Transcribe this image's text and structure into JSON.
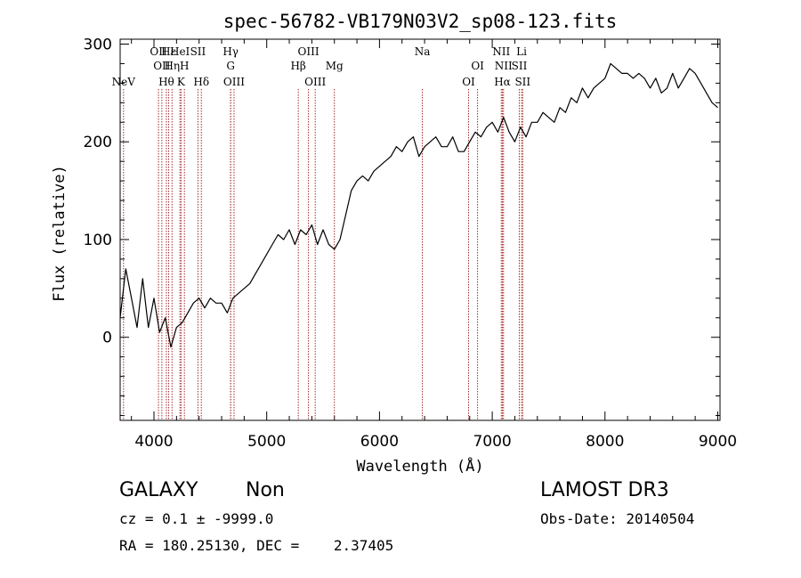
{
  "chart_data": {
    "type": "line",
    "title": "spec-56782-VB179N03V2_sp08-123.fits",
    "xlabel": "Wavelength (Å)",
    "ylabel": "Flux (relative)",
    "xlim": [
      3700,
      9020
    ],
    "ylim": [
      -85,
      305
    ],
    "xticks": [
      4000,
      5000,
      6000,
      7000,
      8000,
      9000
    ],
    "yticks": [
      0,
      100,
      200,
      300
    ],
    "grid": false,
    "series_color": "#000000",
    "line_marker_color": "#a52a2a",
    "series": [
      {
        "x": [
          3700,
          3750,
          3800,
          3850,
          3900,
          3950,
          4000,
          4050,
          4100,
          4150,
          4200,
          4250,
          4300,
          4350,
          4400,
          4450,
          4500,
          4550,
          4600,
          4650,
          4700,
          4750,
          4800,
          4850,
          4900,
          4950,
          5000,
          5050,
          5100,
          5150,
          5200,
          5250,
          5300,
          5350,
          5400,
          5450,
          5500,
          5550,
          5600,
          5650,
          5700,
          5750,
          5800,
          5850,
          5900,
          5950,
          6000,
          6050,
          6100,
          6150,
          6200,
          6250,
          6300,
          6350,
          6400,
          6450,
          6500,
          6550,
          6600,
          6650,
          6700,
          6750,
          6800,
          6850,
          6900,
          6950,
          7000,
          7050,
          7100,
          7150,
          7200,
          7250,
          7300,
          7350,
          7400,
          7450,
          7500,
          7550,
          7600,
          7650,
          7700,
          7750,
          7800,
          7850,
          7900,
          7950,
          8000,
          8050,
          8100,
          8150,
          8200,
          8250,
          8300,
          8350,
          8400,
          8450,
          8500,
          8550,
          8600,
          8650,
          8700,
          8750,
          8800,
          8850,
          8900,
          8950,
          9000
        ],
        "y": [
          20,
          70,
          40,
          10,
          60,
          10,
          40,
          5,
          20,
          -10,
          10,
          15,
          25,
          35,
          40,
          30,
          40,
          35,
          35,
          25,
          40,
          45,
          50,
          55,
          65,
          75,
          85,
          95,
          105,
          100,
          110,
          95,
          110,
          105,
          115,
          95,
          110,
          95,
          90,
          100,
          125,
          150,
          160,
          165,
          160,
          170,
          175,
          180,
          185,
          195,
          190,
          200,
          205,
          185,
          195,
          200,
          205,
          195,
          195,
          205,
          190,
          190,
          200,
          210,
          205,
          215,
          220,
          210,
          225,
          210,
          200,
          215,
          205,
          220,
          220,
          230,
          225,
          220,
          235,
          230,
          245,
          240,
          255,
          245,
          255,
          260,
          265,
          280,
          275,
          270,
          270,
          265,
          270,
          265,
          255,
          265,
          250,
          255,
          270,
          255,
          265,
          275,
          270,
          260,
          250,
          240,
          235
        ]
      }
    ],
    "lines": [
      {
        "name": "NeV",
        "x": 3730,
        "row": 3
      },
      {
        "name": "OII",
        "x": 4040,
        "row": 1
      },
      {
        "name": "OII",
        "x": 4070,
        "row": 2
      },
      {
        "name": "Hθ",
        "x": 4110,
        "row": 3
      },
      {
        "name": "Hε",
        "x": 4130,
        "row": 1
      },
      {
        "name": "Hη",
        "x": 4160,
        "row": 2
      },
      {
        "name": "HeI",
        "x": 4230,
        "row": 1
      },
      {
        "name": "K",
        "x": 4240,
        "row": 3
      },
      {
        "name": "H",
        "x": 4270,
        "row": 2
      },
      {
        "name": "SII",
        "x": 4390,
        "row": 1
      },
      {
        "name": "Hδ",
        "x": 4420,
        "row": 3
      },
      {
        "name": "Hγ",
        "x": 4680,
        "row": 1
      },
      {
        "name": "G",
        "x": 4680,
        "row": 2
      },
      {
        "name": "OIII",
        "x": 4710,
        "row": 3
      },
      {
        "name": "OIII",
        "x": 5370,
        "row": 1
      },
      {
        "name": "Hβ",
        "x": 5280,
        "row": 2
      },
      {
        "name": "OIII",
        "x": 5430,
        "row": 3
      },
      {
        "name": "Mg",
        "x": 5600,
        "row": 2
      },
      {
        "name": "Na",
        "x": 6380,
        "row": 1
      },
      {
        "name": "OI",
        "x": 6870,
        "row": 2
      },
      {
        "name": "OI",
        "x": 6790,
        "row": 3
      },
      {
        "name": "NII",
        "x": 7080,
        "row": 1
      },
      {
        "name": "NII",
        "x": 7100,
        "row": 2
      },
      {
        "name": "Hα",
        "x": 7090,
        "row": 3
      },
      {
        "name": "Li",
        "x": 7260,
        "row": 1
      },
      {
        "name": "SII",
        "x": 7240,
        "row": 2
      },
      {
        "name": "SII",
        "x": 7270,
        "row": 3
      }
    ]
  },
  "info": {
    "class": "GALAXY",
    "subclass": "Non",
    "survey": "LAMOST DR3",
    "cz": "cz = 0.1 ± -9999.0",
    "obs_date": "Obs-Date: 20140504",
    "coords": "RA = 180.25130, DEC =    2.37405"
  }
}
